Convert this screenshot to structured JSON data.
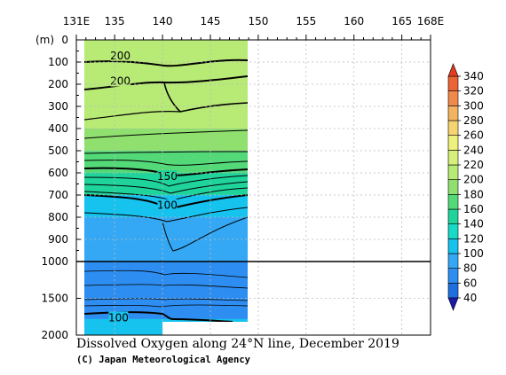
{
  "chart_data": {
    "type": "heatmap",
    "title": "Dissolved Oxygen along 24°N line, December 2019",
    "credit": "(C) Japan Meteorological Agency",
    "xlabel": "",
    "ylabel": "(m)",
    "x_ticks": [
      "131E",
      "135",
      "140",
      "145",
      "150",
      "155",
      "160",
      "165",
      "168E"
    ],
    "x_tick_values": [
      131,
      135,
      140,
      145,
      150,
      155,
      160,
      165,
      168
    ],
    "xlim": [
      131,
      168
    ],
    "y_upper_ticks": [
      0,
      100,
      200,
      300,
      400,
      500,
      600,
      700,
      800,
      900,
      1000
    ],
    "y_lower_ticks": [
      1500,
      2000
    ],
    "ylim": [
      0,
      2000
    ],
    "y_scale_break": 1000,
    "data_extent_lon": [
      131.8,
      149.6
    ],
    "colorbar": {
      "levels": [
        40,
        60,
        80,
        100,
        120,
        140,
        160,
        180,
        200,
        220,
        240,
        260,
        280,
        300,
        320,
        340
      ],
      "labels": [
        "40",
        "60",
        "80",
        "100",
        "120",
        "140",
        "160",
        "180",
        "200",
        "220",
        "240",
        "260",
        "280",
        "300",
        "320",
        "340"
      ],
      "colors": [
        "#1e6fe0",
        "#2e8df0",
        "#34a8f5",
        "#16c3ee",
        "#17dac8",
        "#1fd49a",
        "#54d978",
        "#8fe06e",
        "#b8ea76",
        "#d6f07a",
        "#eef07c",
        "#f7d472",
        "#f4b360",
        "#f08a4a",
        "#ea6436",
        "#e23c22"
      ],
      "extend_low_color": "#1a1aa8",
      "extend_high_color": "#e23c22"
    },
    "profile_layers": [
      {
        "depth_top": 0,
        "depth_bottom": 80,
        "value": 215
      },
      {
        "depth_top": 80,
        "depth_bottom": 400,
        "value": 205
      },
      {
        "depth_top": 400,
        "depth_bottom": 500,
        "value": 190
      },
      {
        "depth_top": 500,
        "depth_bottom": 600,
        "value": 175
      },
      {
        "depth_top": 600,
        "depth_bottom": 700,
        "value": 145
      },
      {
        "depth_top": 700,
        "depth_bottom": 800,
        "value": 115
      },
      {
        "depth_top": 800,
        "depth_bottom": 1000,
        "value": 95
      },
      {
        "depth_top": 1000,
        "depth_bottom": 2000,
        "value": 75
      }
    ],
    "contour_labels": [
      {
        "text": "200",
        "lon": 135.6,
        "depth": 75
      },
      {
        "text": "200",
        "lon": 135.6,
        "depth": 190
      },
      {
        "text": "150",
        "lon": 140.5,
        "depth": 620
      },
      {
        "text": "100",
        "lon": 140.5,
        "depth": 750
      },
      {
        "text": "100",
        "lon": 135.4,
        "depth": 1775
      }
    ]
  }
}
